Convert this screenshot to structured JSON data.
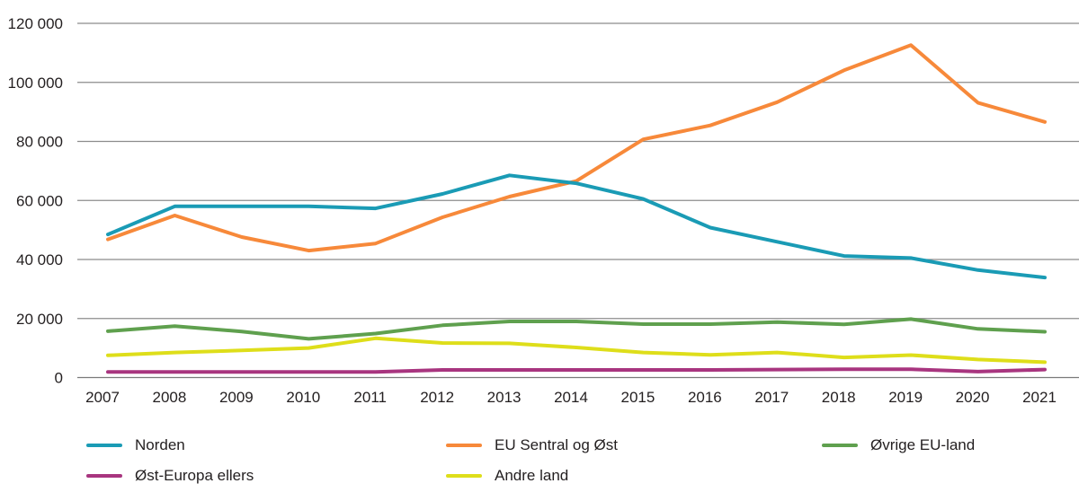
{
  "chart_data": {
    "type": "line",
    "title": "",
    "xlabel": "",
    "ylabel": "",
    "x": [
      "2007",
      "2008",
      "2009",
      "2010",
      "2011",
      "2012",
      "2013",
      "2014",
      "2015",
      "2016",
      "2017",
      "2018",
      "2019",
      "2020",
      "2021"
    ],
    "ylim": [
      0,
      120000
    ],
    "yticks": [
      0,
      20000,
      40000,
      60000,
      80000,
      100000,
      120000
    ],
    "ytick_labels": [
      "0",
      "20 000",
      "40 000",
      "60 000",
      "80 000",
      "100 000",
      "120 000"
    ],
    "grid": true,
    "legend_position": "bottom",
    "series": [
      {
        "name": "Norden",
        "color": "#1a9bb5",
        "values": [
          48500,
          58000,
          58000,
          58000,
          57300,
          62200,
          68500,
          65800,
          60500,
          50800,
          46000,
          41200,
          40500,
          36400,
          33900
        ]
      },
      {
        "name": "EU Sentral og Øst",
        "color": "#f7893a",
        "values": [
          46800,
          54900,
          47600,
          43000,
          45400,
          54300,
          61300,
          66600,
          80700,
          85400,
          93300,
          104100,
          112600,
          93100,
          86600
        ]
      },
      {
        "name": "Øvrige EU-land",
        "color": "#5fa04e",
        "values": [
          15700,
          17400,
          15600,
          13100,
          14900,
          17700,
          19000,
          19000,
          18100,
          18100,
          18800,
          18000,
          19800,
          16500,
          15500
        ]
      },
      {
        "name": "Øst-Europa ellers",
        "color": "#a8357f",
        "values": [
          1900,
          1900,
          1900,
          1900,
          1900,
          2600,
          2600,
          2600,
          2600,
          2600,
          2700,
          2800,
          2800,
          2000,
          2700
        ]
      },
      {
        "name": "Andre land",
        "color": "#dede1a",
        "values": [
          7500,
          8500,
          9200,
          10000,
          13300,
          11700,
          11600,
          10200,
          8500,
          7700,
          8500,
          6800,
          7600,
          6100,
          5200
        ]
      }
    ]
  },
  "legend": {
    "items": [
      {
        "label": "Norden",
        "color": "#1a9bb5"
      },
      {
        "label": "EU Sentral og Øst",
        "color": "#f7893a"
      },
      {
        "label": "Øvrige EU-land",
        "color": "#5fa04e"
      },
      {
        "label": "Øst-Europa ellers",
        "color": "#a8357f"
      },
      {
        "label": "Andre land",
        "color": "#dede1a"
      }
    ]
  }
}
